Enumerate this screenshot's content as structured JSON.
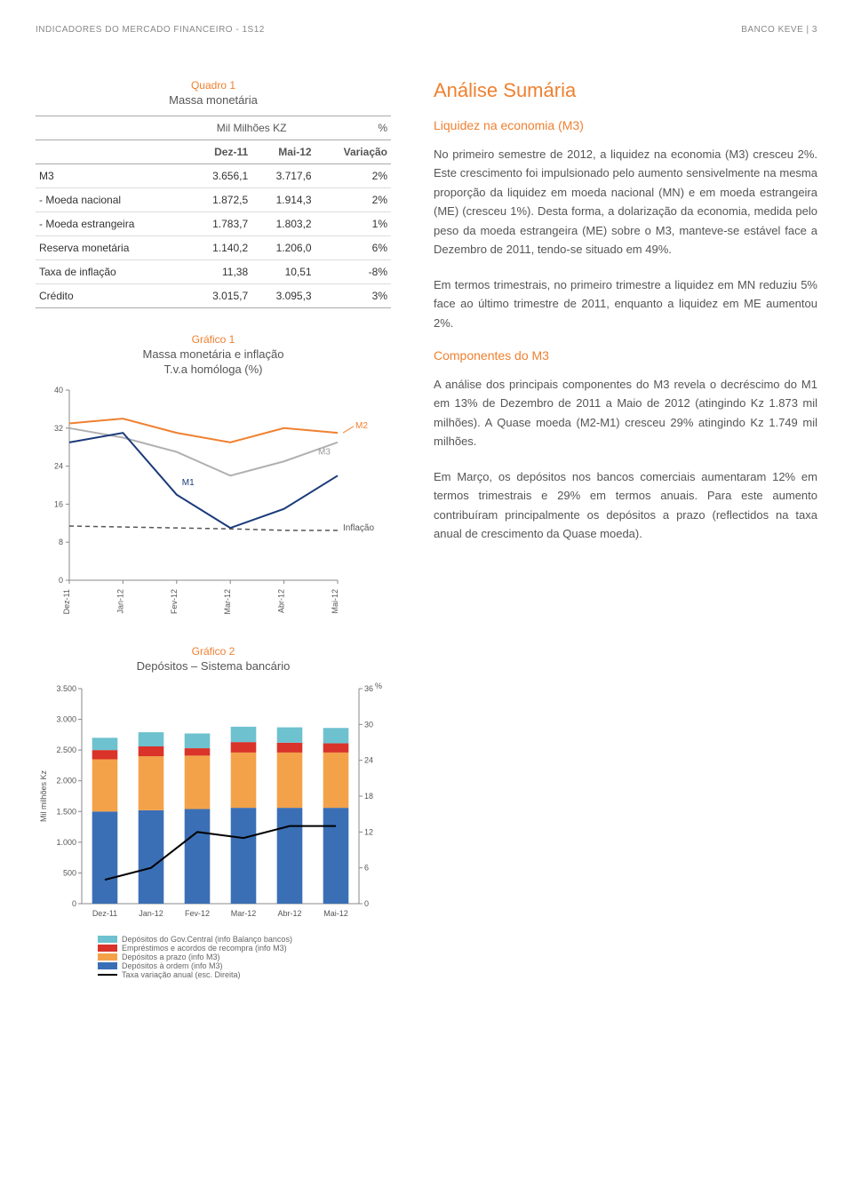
{
  "header": {
    "left": "INDICADORES DO MERCADO FINANCEIRO - 1S12",
    "right": "BANCO KEVE | 3"
  },
  "quadro1": {
    "label": "Quadro 1",
    "title": "Massa monetária",
    "col_group_left": "Mil Milhões KZ",
    "col_group_right": "%",
    "columns": [
      "",
      "Dez-11",
      "Mai-12",
      "Variação"
    ],
    "rows": [
      {
        "label": "M3",
        "dez": "3.656,1",
        "mai": "3.717,6",
        "var": "2%",
        "sep": true
      },
      {
        "label": "- Moeda nacional",
        "dez": "1.872,5",
        "mai": "1.914,3",
        "var": "2%"
      },
      {
        "label": "- Moeda estrangeira",
        "dez": "1.783,7",
        "mai": "1.803,2",
        "var": "1%"
      },
      {
        "label": "Reserva monetária",
        "dez": "1.140,2",
        "mai": "1.206,0",
        "var": "6%",
        "sep": true
      },
      {
        "label": "Taxa de inflação",
        "dez": "11,38",
        "mai": "10,51",
        "var": "-8%"
      },
      {
        "label": "Crédito",
        "dez": "3.015,7",
        "mai": "3.095,3",
        "var": "3%",
        "sep": true
      }
    ]
  },
  "grafico1": {
    "label": "Gráfico 1",
    "title": "Massa monetária e inflação",
    "subtitle": "T.v.a homóloga (%)",
    "type": "line",
    "x_labels": [
      "Dez-11",
      "Jan-12",
      "Fev-12",
      "Mar-12",
      "Abr-12",
      "Mai-12"
    ],
    "ylim": [
      0,
      40
    ],
    "ytick_step": 8,
    "yticks": [
      0,
      8,
      16,
      24,
      32,
      40
    ],
    "series": {
      "M2": {
        "color": "#f08030",
        "values": [
          33,
          34,
          31,
          29,
          32,
          31
        ],
        "width": 2
      },
      "M3": {
        "color": "#b0b0b0",
        "values": [
          32,
          30,
          27,
          22,
          25,
          29
        ],
        "width": 2
      },
      "M1": {
        "color": "#1a3a7a",
        "values": [
          29,
          31,
          18,
          11,
          15,
          22
        ],
        "width": 2
      },
      "Inflacao": {
        "label": "Inflação",
        "color": "#555555",
        "values": [
          11.4,
          11.2,
          11.0,
          10.8,
          10.5,
          10.5
        ],
        "dash": true,
        "width": 1.5
      }
    },
    "annotations": {
      "M2": "M2",
      "M3": "M3",
      "M1": "M1",
      "Inflacao": "Inflação"
    },
    "background_color": "#ffffff",
    "axis_color": "#888",
    "label_fontsize": 9
  },
  "grafico2": {
    "label": "Gráfico 2",
    "title": "Depósitos – Sistema bancário",
    "type": "stacked_bar_with_line",
    "x_labels": [
      "Dez-11",
      "Jan-12",
      "Fev-12",
      "Mar-12",
      "Abr-12",
      "Mai-12"
    ],
    "y_left_label": "Mil milhões Kz",
    "y_left_lim": [
      0,
      3500
    ],
    "y_left_ticks": [
      0,
      500,
      1000,
      1500,
      2000,
      2500,
      3000,
      3500
    ],
    "y_left_tick_labels": [
      "0",
      "500",
      "1.000",
      "1.500",
      "2.000",
      "2.500",
      "3.000",
      "3.500"
    ],
    "y_right_label": "%",
    "y_right_lim": [
      0,
      36
    ],
    "y_right_ticks": [
      0,
      6,
      12,
      18,
      24,
      30,
      36
    ],
    "bar_width": 0.55,
    "stacks": [
      {
        "name": "Depósitos do Gov.Central (info Balanço bancos)",
        "color": "#6ec1cf",
        "values": [
          200,
          230,
          240,
          250,
          250,
          250
        ]
      },
      {
        "name": "Empréstimos e acordos de recompra (info M3)",
        "color": "#d9332a",
        "values": [
          150,
          160,
          120,
          170,
          160,
          150
        ]
      },
      {
        "name": "Depósitos a prazo (info M3)",
        "color": "#f3a24a",
        "values": [
          850,
          880,
          870,
          900,
          900,
          900
        ]
      },
      {
        "name": "Depósitos à ordem (info M3)",
        "color": "#3a6fb5",
        "values": [
          1500,
          1520,
          1540,
          1560,
          1560,
          1560
        ]
      }
    ],
    "line": {
      "name": "Taxa variação anual (esc. Direita)",
      "color": "#000000",
      "values": [
        4,
        6,
        12,
        11,
        13,
        13
      ],
      "width": 2
    },
    "background_color": "#ffffff",
    "axis_color": "#888",
    "label_fontsize": 9
  },
  "text": {
    "analise_title": "Análise Sumária",
    "liquidez_title": "Liquidez na economia (M3)",
    "p1": "No primeiro semestre de 2012, a liquidez na economia (M3) cresceu 2%. Este crescimento foi impulsionado pelo aumento sensivelmente na mesma proporção da liquidez em moeda nacional (MN) e em moeda estrangeira (ME) (cresceu 1%). Desta forma, a dolarização da economia, medida pelo peso da moeda estrangeira (ME) sobre o M3, manteve-se estável face a Dezembro de 2011, tendo-se situado em 49%.",
    "p2": "Em termos trimestrais, no primeiro trimestre a liquidez em MN reduziu 5% face ao último trimestre de 2011, enquanto a liquidez em ME aumentou 2%.",
    "componentes_title": "Componentes do M3",
    "p3": "A análise dos principais componentes do M3 revela o decréscimo do M1 em 13% de Dezembro de 2011 a Maio de 2012 (atingindo Kz 1.873 mil milhões). A Quase moeda (M2-M1) cresceu 29% atingindo Kz 1.749 mil milhões.",
    "p4": "Em Março, os depósitos nos bancos comerciais aumentaram 12% em termos trimestrais e 29% em termos anuais. Para este aumento contribuíram principalmente os depósitos a prazo (reflectidos na taxa anual de crescimento da Quase moeda)."
  }
}
